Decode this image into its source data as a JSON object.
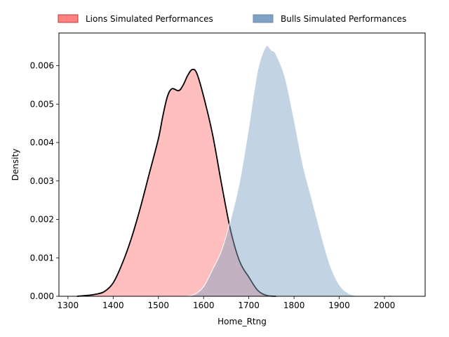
{
  "chart_data": {
    "type": "area",
    "xlabel": "Home_Rtng",
    "ylabel": "Density",
    "xlim": [
      1280,
      2090
    ],
    "ylim": [
      0,
      0.00685
    ],
    "xticks": [
      1300,
      1400,
      1500,
      1600,
      1700,
      1800,
      1900,
      2000
    ],
    "yticks": [
      0.0,
      0.001,
      0.002,
      0.003,
      0.004,
      0.005,
      0.006
    ],
    "ytick_labels": [
      "0.000",
      "0.001",
      "0.002",
      "0.003",
      "0.004",
      "0.005",
      "0.006"
    ],
    "grid": false,
    "legend": {
      "placement": "top-center-outside",
      "columns": 2
    },
    "series": [
      {
        "name": "Lions Simulated Performances",
        "fill_color": "#ff8080",
        "fill_opacity": 0.5,
        "line_color": "#000000",
        "points": [
          [
            1320,
            0.0
          ],
          [
            1340,
            2e-05
          ],
          [
            1360,
            5e-05
          ],
          [
            1380,
            0.00012
          ],
          [
            1400,
            0.00035
          ],
          [
            1420,
            0.00085
          ],
          [
            1440,
            0.0015
          ],
          [
            1460,
            0.0023
          ],
          [
            1480,
            0.0032
          ],
          [
            1500,
            0.0041
          ],
          [
            1510,
            0.0047
          ],
          [
            1520,
            0.0052
          ],
          [
            1530,
            0.0054
          ],
          [
            1545,
            0.00535
          ],
          [
            1555,
            0.0055
          ],
          [
            1565,
            0.00575
          ],
          [
            1575,
            0.0059
          ],
          [
            1585,
            0.0058
          ],
          [
            1600,
            0.0052
          ],
          [
            1620,
            0.0042
          ],
          [
            1640,
            0.0029
          ],
          [
            1660,
            0.0017
          ],
          [
            1680,
            0.0009
          ],
          [
            1700,
            0.0005
          ],
          [
            1720,
            0.00015
          ],
          [
            1740,
            2e-05
          ],
          [
            1760,
            0.0
          ]
        ]
      },
      {
        "name": "Bulls Simulated Performances",
        "fill_color": "#7fa2c4",
        "fill_opacity": 0.48,
        "line_color": "#ffffff",
        "points": [
          [
            1560,
            0.0
          ],
          [
            1580,
            5e-05
          ],
          [
            1600,
            0.00025
          ],
          [
            1620,
            0.0007
          ],
          [
            1640,
            0.0012
          ],
          [
            1660,
            0.002
          ],
          [
            1680,
            0.003
          ],
          [
            1700,
            0.0044
          ],
          [
            1710,
            0.0052
          ],
          [
            1720,
            0.0059
          ],
          [
            1730,
            0.0063
          ],
          [
            1740,
            0.00652
          ],
          [
            1750,
            0.0064
          ],
          [
            1760,
            0.0063
          ],
          [
            1780,
            0.0057
          ],
          [
            1800,
            0.0046
          ],
          [
            1820,
            0.0034
          ],
          [
            1840,
            0.0025
          ],
          [
            1860,
            0.0016
          ],
          [
            1880,
            0.0008
          ],
          [
            1900,
            0.0003
          ],
          [
            1920,
            8e-05
          ],
          [
            1940,
            1e-05
          ],
          [
            1960,
            0.0
          ],
          [
            2000,
            0.0
          ],
          [
            2010,
            3e-05
          ],
          [
            2020,
            1e-05
          ],
          [
            2030,
            0.0
          ]
        ]
      }
    ]
  }
}
